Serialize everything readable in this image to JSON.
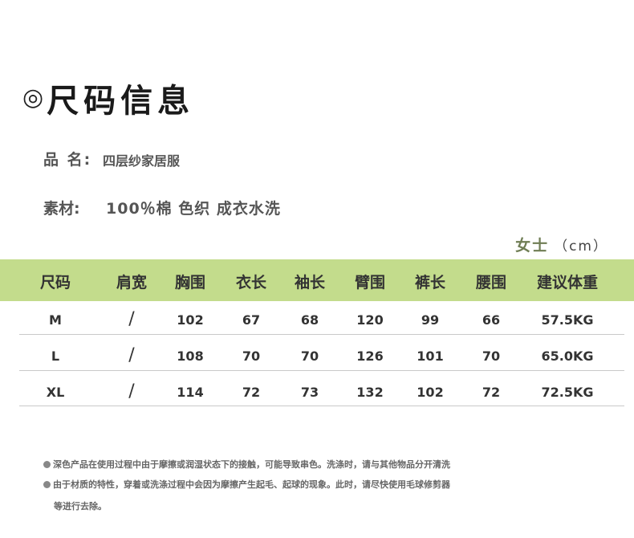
{
  "title": {
    "symbol": "◎",
    "text": "尺码信息"
  },
  "product": {
    "name_label": "品 名:",
    "name_value": "四层纱家居服",
    "material_label": "素材:",
    "material_value": "100％棉  色织  成衣水洗"
  },
  "unit": {
    "gender": "女士",
    "unit": "（cm）"
  },
  "table": {
    "headers": [
      "尺码",
      "肩宽",
      "胸围",
      "衣长",
      "袖长",
      "臂围",
      "裤长",
      "腰围",
      "建议体重"
    ],
    "rows": [
      [
        "M",
        "/",
        "102",
        "67",
        "68",
        "120",
        "99",
        "66",
        "57.5KG"
      ],
      [
        "L",
        "/",
        "108",
        "70",
        "70",
        "126",
        "101",
        "70",
        "65.0KG"
      ],
      [
        "XL",
        "/",
        "114",
        "72",
        "73",
        "132",
        "102",
        "72",
        "72.5KG"
      ]
    ]
  },
  "notes": [
    "深色产品在使用过程中由于摩擦或润湿状态下的接触，可能导致串色。洗涤时，请与其他物品分开清洗",
    "由于材质的特性，穿着或洗涤过程中会因为摩擦产生起毛、起球的现象。此时，请尽快使用毛球修剪器",
    "等进行去除。"
  ],
  "colors": {
    "header_bg": "#c3dc8c",
    "gender_text": "#6f7d54"
  }
}
